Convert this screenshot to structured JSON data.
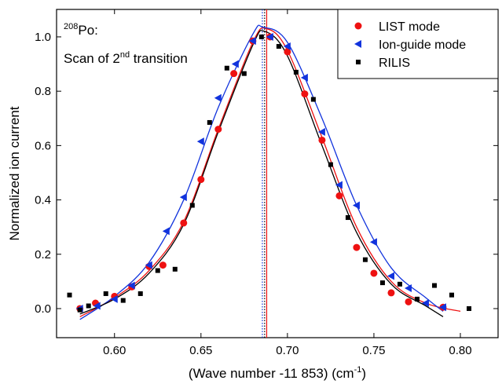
{
  "chart_data": {
    "type": "scatter",
    "x_label": "(Wave number -11 853) (cm",
    "x_label_sup": "-1",
    "x_label_end": ")",
    "y_label": "Normalized ion current",
    "annotation": {
      "mass": "208",
      "element": "Po:",
      "line2": "Scan of 2",
      "line2_sup": "nd",
      "line2_end": " transition"
    },
    "xlim": [
      0.5665,
      0.8218
    ],
    "ylim": [
      -0.107,
      1.101
    ],
    "xticks": [
      {
        "value": 0.6,
        "label": "0.60"
      },
      {
        "value": 0.65,
        "label": "0.65"
      },
      {
        "value": 0.7,
        "label": "0.70"
      },
      {
        "value": 0.75,
        "label": "0.75"
      },
      {
        "value": 0.8,
        "label": "0.80"
      }
    ],
    "yticks": [
      {
        "value": 0,
        "label": "0.0"
      },
      {
        "value": 0.2,
        "label": "0.2"
      },
      {
        "value": 0.4,
        "label": "0.4"
      },
      {
        "value": 0.6,
        "label": "0.6"
      },
      {
        "value": 0.8,
        "label": "0.8"
      },
      {
        "value": 1,
        "label": "1.0"
      }
    ],
    "legend": "top-right",
    "series": [
      {
        "name": "LIST mode",
        "color": "#ee1111",
        "marker": "circle",
        "x": [
          0.58,
          0.589,
          0.6,
          0.61,
          0.62,
          0.628,
          0.64,
          0.65,
          0.66,
          0.669,
          0.68,
          0.69,
          0.7,
          0.71,
          0.72,
          0.73,
          0.74,
          0.75,
          0.76,
          0.77,
          0.79
        ],
        "values": [
          0.0,
          0.02,
          0.045,
          0.08,
          0.155,
          0.16,
          0.315,
          0.475,
          0.66,
          0.865,
          0.985,
          1.0,
          0.945,
          0.79,
          0.62,
          0.415,
          0.225,
          0.13,
          0.058,
          0.025,
          0.005
        ],
        "fit": {
          "x": [
            0.58,
            0.6,
            0.62,
            0.64,
            0.66,
            0.68,
            0.688,
            0.7,
            0.72,
            0.74,
            0.76,
            0.78,
            0.8
          ],
          "values": [
            -0.03,
            0.04,
            0.14,
            0.32,
            0.66,
            0.98,
            1.03,
            0.95,
            0.63,
            0.3,
            0.1,
            0.02,
            -0.01
          ]
        }
      },
      {
        "name": "Ion-guide mode",
        "color": "#1133dd",
        "marker": "triangle-left",
        "x": [
          0.58,
          0.59,
          0.6,
          0.61,
          0.62,
          0.63,
          0.64,
          0.65,
          0.66,
          0.67,
          0.68,
          0.69,
          0.7,
          0.71,
          0.72,
          0.73,
          0.74,
          0.75,
          0.76,
          0.77,
          0.78,
          0.79
        ],
        "values": [
          0.0,
          0.01,
          0.035,
          0.085,
          0.16,
          0.285,
          0.41,
          0.615,
          0.775,
          0.9,
          0.985,
          1.0,
          0.965,
          0.85,
          0.65,
          0.455,
          0.38,
          0.245,
          0.12,
          0.075,
          0.02,
          0.005
        ],
        "fit": {
          "x": [
            0.58,
            0.6,
            0.62,
            0.64,
            0.66,
            0.68,
            0.686,
            0.7,
            0.72,
            0.74,
            0.76,
            0.78,
            0.79
          ],
          "values": [
            -0.04,
            0.045,
            0.17,
            0.4,
            0.74,
            1.01,
            1.035,
            0.98,
            0.7,
            0.38,
            0.15,
            0.04,
            -0.01
          ]
        }
      },
      {
        "name": "RILIS",
        "color": "#000000",
        "marker": "square",
        "x": [
          0.574,
          0.58,
          0.585,
          0.595,
          0.605,
          0.615,
          0.625,
          0.635,
          0.645,
          0.655,
          0.665,
          0.675,
          0.685,
          0.695,
          0.705,
          0.715,
          0.725,
          0.735,
          0.745,
          0.755,
          0.765,
          0.775,
          0.785,
          0.795,
          0.805
        ],
        "values": [
          0.05,
          -0.005,
          0.01,
          0.055,
          0.03,
          0.055,
          0.14,
          0.145,
          0.38,
          0.685,
          0.885,
          0.865,
          1.0,
          0.965,
          0.87,
          0.77,
          0.53,
          0.335,
          0.18,
          0.095,
          0.09,
          0.035,
          0.085,
          0.05,
          0.0
        ],
        "fit": {
          "x": [
            0.58,
            0.6,
            0.62,
            0.64,
            0.66,
            0.68,
            0.687,
            0.7,
            0.72,
            0.74,
            0.76,
            0.78,
            0.79
          ],
          "values": [
            -0.02,
            0.035,
            0.13,
            0.31,
            0.65,
            0.97,
            1.02,
            0.93,
            0.6,
            0.28,
            0.09,
            0.01,
            -0.03
          ]
        }
      }
    ],
    "vlines": [
      {
        "x": 0.6855,
        "color": "#1133dd",
        "style": "dotted"
      },
      {
        "x": 0.6868,
        "color": "#000000",
        "style": "dotted"
      },
      {
        "x": 0.688,
        "color": "#ee1111",
        "style": "solid"
      }
    ]
  }
}
